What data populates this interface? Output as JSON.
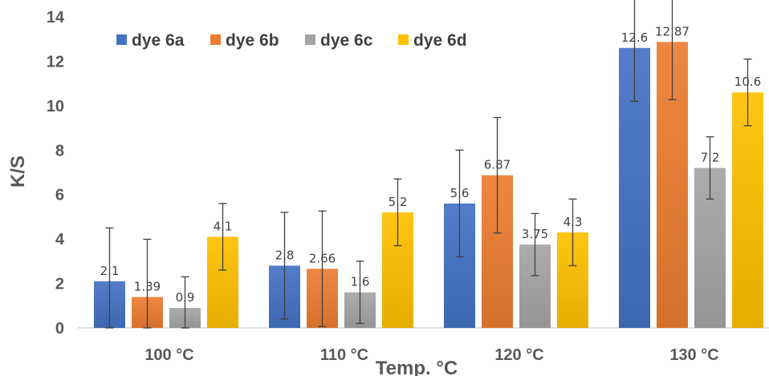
{
  "chart_data": {
    "type": "bar",
    "title": "",
    "xlabel": "Temp. °C",
    "ylabel": "K/S",
    "ylim": [
      0,
      14
    ],
    "yticks": [
      0,
      2,
      4,
      6,
      8,
      10,
      12,
      14
    ],
    "grid": false,
    "legend_position": "top-left",
    "categories": [
      "100 °C",
      "110 °C",
      "120 °C",
      "130 °C"
    ],
    "series": [
      {
        "name": "dye 6a",
        "color": "#4472C4",
        "values": [
          2.1,
          2.8,
          5.6,
          12.6
        ],
        "labels": [
          "2.1",
          "2.8",
          "5.6",
          "12.6"
        ],
        "error": [
          2.4,
          2.4,
          2.4,
          2.4
        ]
      },
      {
        "name": "dye 6b",
        "color": "#ED7D31",
        "values": [
          1.39,
          2.66,
          6.87,
          12.87
        ],
        "labels": [
          "1.39",
          "2.66",
          "6.87",
          "12.87"
        ],
        "error": [
          2.6,
          2.6,
          2.6,
          2.6
        ]
      },
      {
        "name": "dye 6c",
        "color": "#A5A5A5",
        "values": [
          0.9,
          1.6,
          3.75,
          7.2
        ],
        "labels": [
          "0.9",
          "1.6",
          "3.75",
          "7.2"
        ],
        "error": [
          1.4,
          1.4,
          1.4,
          1.4
        ]
      },
      {
        "name": "dye 6d",
        "color": "#FFC000",
        "values": [
          4.1,
          5.2,
          4.3,
          10.6
        ],
        "labels": [
          "4.1",
          "5.2",
          "4.3",
          "10.6"
        ],
        "error": [
          1.5,
          1.5,
          1.5,
          1.5
        ]
      }
    ]
  }
}
